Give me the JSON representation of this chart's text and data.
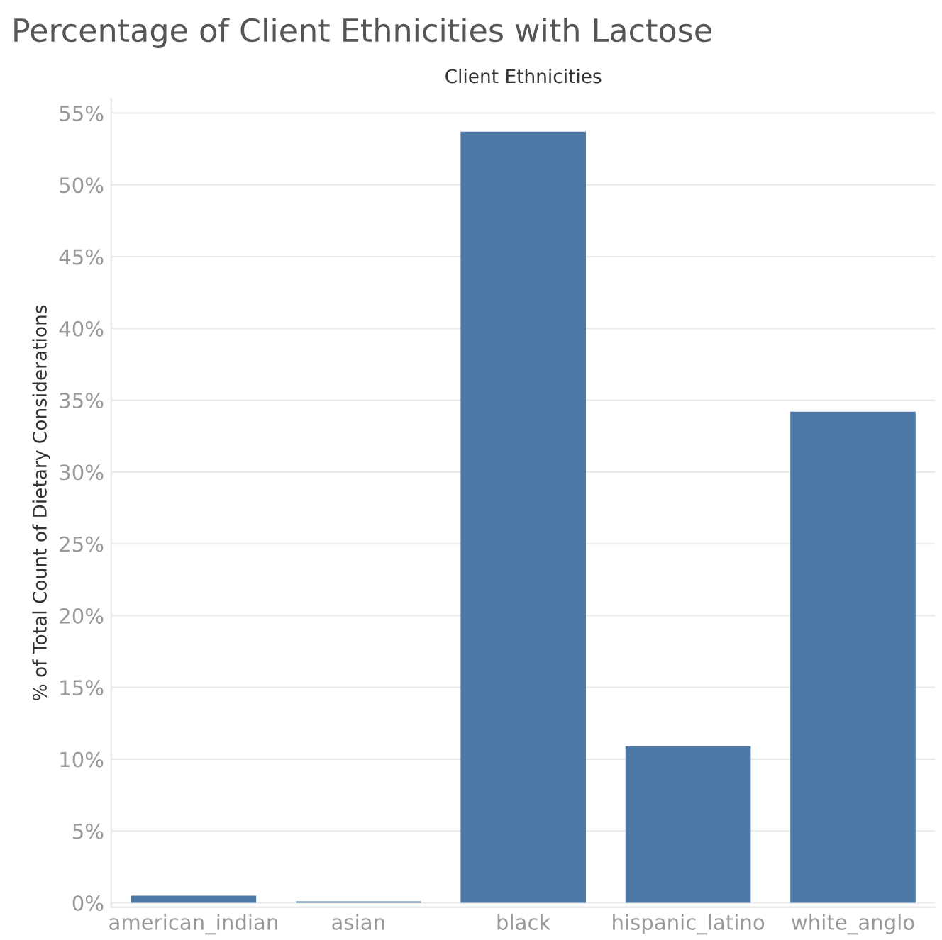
{
  "chart_data": {
    "type": "bar",
    "title": "Percentage of Client Ethnicities with Lactose",
    "xlabel": "Client Ethnicities",
    "ylabel": "% of Total Count of Dietary Considerations",
    "categories": [
      "american_indian",
      "asian",
      "black",
      "hispanic_latino",
      "white_anglo"
    ],
    "values": [
      0.5,
      0.1,
      53.7,
      10.9,
      34.2
    ],
    "color": "#4e79a7",
    "ylim": [
      -0.3,
      56
    ],
    "yticks": [
      {
        "value": 0,
        "label": "0%"
      },
      {
        "value": 5,
        "label": "5%"
      },
      {
        "value": 10,
        "label": "10%"
      },
      {
        "value": 15,
        "label": "15%"
      },
      {
        "value": 20,
        "label": "20%"
      },
      {
        "value": 25,
        "label": "25%"
      },
      {
        "value": 30,
        "label": "30%"
      },
      {
        "value": 35,
        "label": "35%"
      },
      {
        "value": 40,
        "label": "40%"
      },
      {
        "value": 45,
        "label": "45%"
      },
      {
        "value": 50,
        "label": "50%"
      },
      {
        "value": 55,
        "label": "55%"
      }
    ],
    "grid": "y"
  }
}
